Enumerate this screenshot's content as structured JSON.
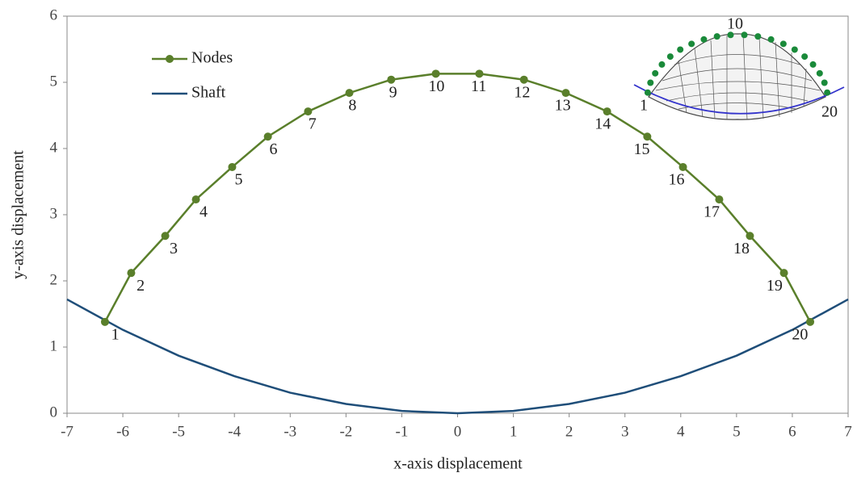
{
  "chart_data": {
    "type": "line",
    "xlabel": "x-axis displacement",
    "ylabel": "y-axis displacement",
    "xlim": [
      -7,
      7
    ],
    "ylim": [
      0,
      6
    ],
    "xticks": [
      -7,
      -6,
      -5,
      -4,
      -3,
      -2,
      -1,
      0,
      1,
      2,
      3,
      4,
      5,
      6,
      7
    ],
    "yticks": [
      0,
      1,
      2,
      3,
      4,
      5,
      6
    ],
    "grid": false,
    "legend": "upper left",
    "series": [
      {
        "name": "Nodes",
        "color": "#5a7f2b",
        "marker": true,
        "x": [
          -6.32,
          -5.85,
          -5.24,
          -4.69,
          -4.04,
          -3.4,
          -2.68,
          -1.94,
          -1.19,
          -0.39,
          0.39,
          1.19,
          1.94,
          2.68,
          3.4,
          4.04,
          4.69,
          5.24,
          5.85,
          6.32
        ],
        "values": [
          1.38,
          2.12,
          2.68,
          3.23,
          3.72,
          4.18,
          4.56,
          4.84,
          5.04,
          5.13,
          5.13,
          5.04,
          4.84,
          4.56,
          4.18,
          3.72,
          3.23,
          2.68,
          2.12,
          1.38
        ],
        "point_labels": [
          "1",
          "2",
          "3",
          "4",
          "5",
          "6",
          "7",
          "8",
          "9",
          "10",
          "11",
          "12",
          "13",
          "14",
          "15",
          "16",
          "17",
          "18",
          "19",
          "20"
        ]
      },
      {
        "name": "Shaft",
        "color": "#1f4e79",
        "marker": false,
        "x": [
          -7,
          -6,
          -5,
          -4,
          -3,
          -2,
          -1,
          0,
          1,
          2,
          3,
          4,
          5,
          6,
          7
        ],
        "values": [
          1.72,
          1.26,
          0.87,
          0.56,
          0.31,
          0.14,
          0.035,
          0,
          0.035,
          0.14,
          0.31,
          0.56,
          0.87,
          1.26,
          1.72
        ]
      }
    ],
    "inset": {
      "labels": [
        "10",
        "1",
        "20"
      ]
    }
  }
}
